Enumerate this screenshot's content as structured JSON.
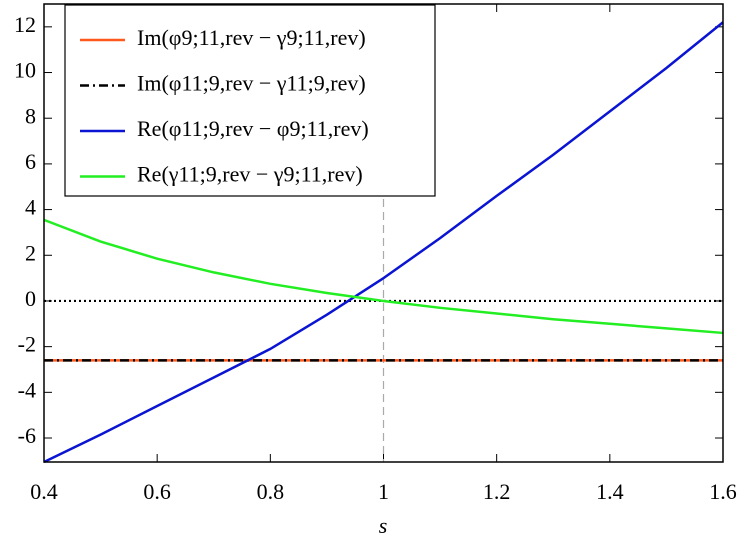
{
  "chart_data": {
    "type": "line",
    "xlabel": "s",
    "x": [
      0.4,
      0.5,
      0.6,
      0.7,
      0.8,
      0.9,
      1.0,
      1.1,
      1.2,
      1.3,
      1.4,
      1.5,
      1.6
    ],
    "series": [
      {
        "name": "Im(φ9;11,rev − γ9;11,rev)",
        "color": "#ff5a1e",
        "dash": "solid",
        "values": [
          -2.6,
          -2.6,
          -2.6,
          -2.6,
          -2.6,
          -2.6,
          -2.6,
          -2.6,
          -2.6,
          -2.6,
          -2.6,
          -2.6,
          -2.6
        ]
      },
      {
        "name": "Im(φ11;9,rev − γ11;9,rev)",
        "color": "#000000",
        "dash": "dashdot",
        "values": [
          -2.6,
          -2.6,
          -2.6,
          -2.6,
          -2.6,
          -2.6,
          -2.6,
          -2.6,
          -2.6,
          -2.6,
          -2.6,
          -2.6,
          -2.6
        ]
      },
      {
        "name": "Re(φ11;9,rev − φ9;11,rev)",
        "color": "#0a14d2",
        "dash": "solid",
        "values": [
          -7.05,
          -5.85,
          -4.6,
          -3.35,
          -2.1,
          -0.6,
          1.0,
          2.75,
          4.6,
          6.4,
          8.3,
          10.2,
          12.2
        ]
      },
      {
        "name": "Re(γ11;9,rev − γ9;11,rev)",
        "color": "#22ee22",
        "dash": "solid",
        "values": [
          3.55,
          2.6,
          1.85,
          1.25,
          0.75,
          0.35,
          0.0,
          -0.3,
          -0.55,
          -0.8,
          -1.0,
          -1.2,
          -1.4
        ]
      }
    ],
    "hline": 0,
    "vline": 1,
    "xlim": [
      0.4,
      1.6
    ],
    "xticks": [
      0.4,
      0.6,
      0.8,
      1,
      1.2,
      1.4,
      1.6
    ],
    "ylim": [
      -7.05,
      13
    ],
    "yticks": [
      -6,
      -4,
      -2,
      0,
      2,
      4,
      6,
      8,
      10,
      12
    ],
    "legend": "upper-left"
  }
}
